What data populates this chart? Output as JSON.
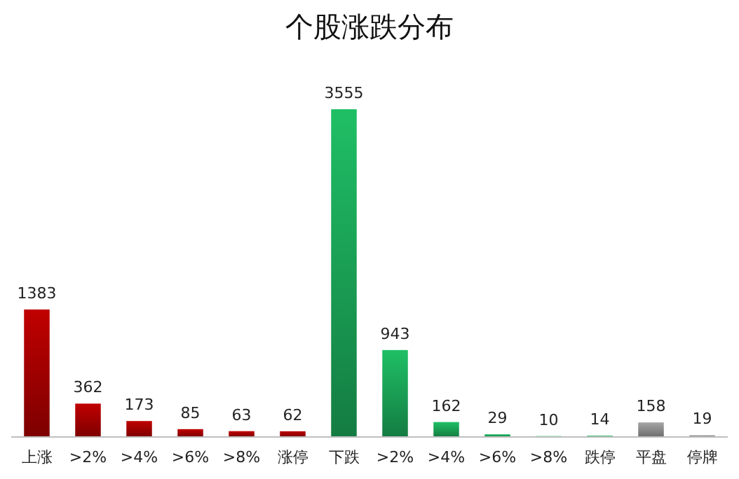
{
  "chart_data": {
    "type": "bar",
    "title": "个股涨跌分布",
    "categories": [
      "上涨",
      ">2%",
      ">4%",
      ">6%",
      ">8%",
      "涨停",
      "下跌",
      ">2%",
      ">4%",
      ">6%",
      ">8%",
      "跌停",
      "平盘",
      "停牌"
    ],
    "values": [
      1383,
      362,
      173,
      85,
      63,
      62,
      3555,
      943,
      162,
      29,
      10,
      14,
      158,
      19
    ],
    "colors": [
      "#c00000",
      "#c00000",
      "#c00000",
      "#c00000",
      "#c00000",
      "#c00000",
      "#1fbf65",
      "#1fbf65",
      "#1fbf65",
      "#1fbf65",
      "#1fbf65",
      "#1fbf65",
      "#a6a6a6",
      "#a6a6a6"
    ],
    "data_labels": true
  }
}
